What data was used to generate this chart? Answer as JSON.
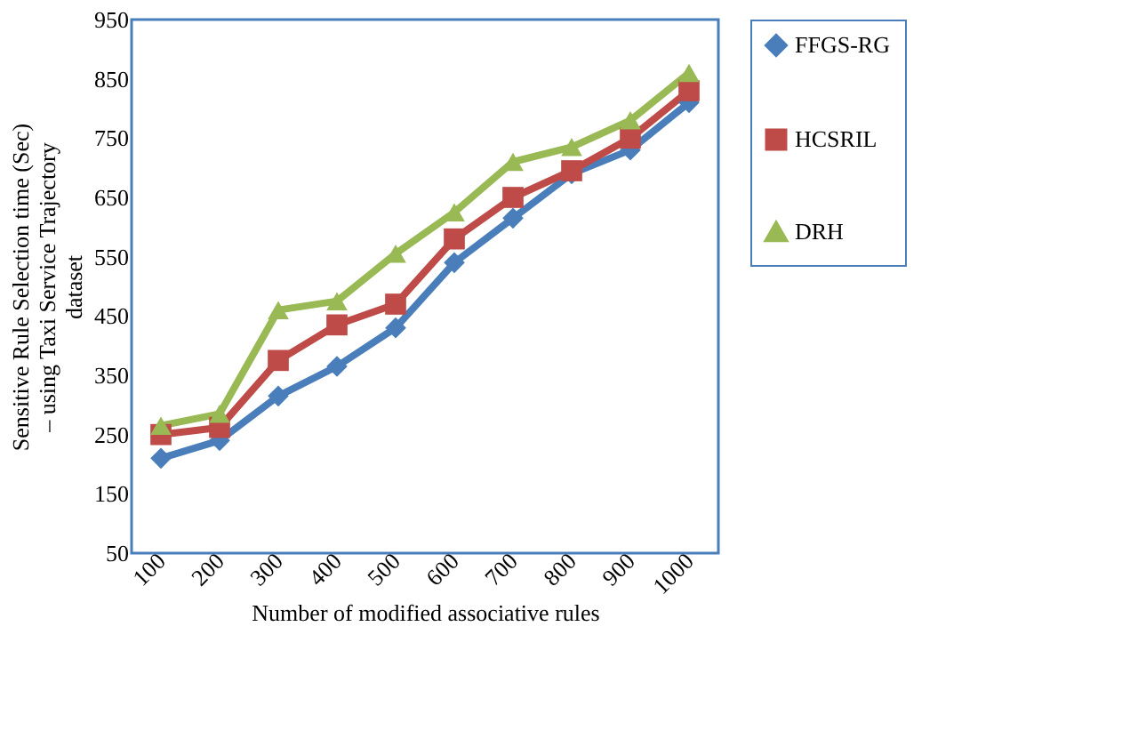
{
  "chart_data": {
    "type": "line",
    "xlabel": "Number of modified associative rules",
    "ylabel": "Sensitive Rule Selection time (Sec) – using Taxi Service Trajectory dataset",
    "categories": [
      "100",
      "200",
      "300",
      "400",
      "500",
      "600",
      "700",
      "800",
      "900",
      "1000"
    ],
    "series": [
      {
        "name": "FFGS-RG",
        "color": "#4a7ebb",
        "marker": "diamond",
        "values": [
          210,
          240,
          315,
          365,
          430,
          540,
          615,
          690,
          730,
          810
        ]
      },
      {
        "name": "HCSRIL",
        "color": "#be4b48",
        "marker": "square",
        "values": [
          250,
          262,
          375,
          435,
          470,
          580,
          650,
          695,
          750,
          830
        ]
      },
      {
        "name": "DRH",
        "color": "#98b954",
        "marker": "triangle",
        "values": [
          265,
          285,
          460,
          475,
          555,
          625,
          710,
          735,
          780,
          860
        ]
      }
    ],
    "ylim": [
      50,
      950
    ],
    "yticks": [
      50,
      150,
      250,
      350,
      450,
      550,
      650,
      750,
      850,
      950
    ],
    "grid": false,
    "legend": "right",
    "line_style": "solid"
  }
}
